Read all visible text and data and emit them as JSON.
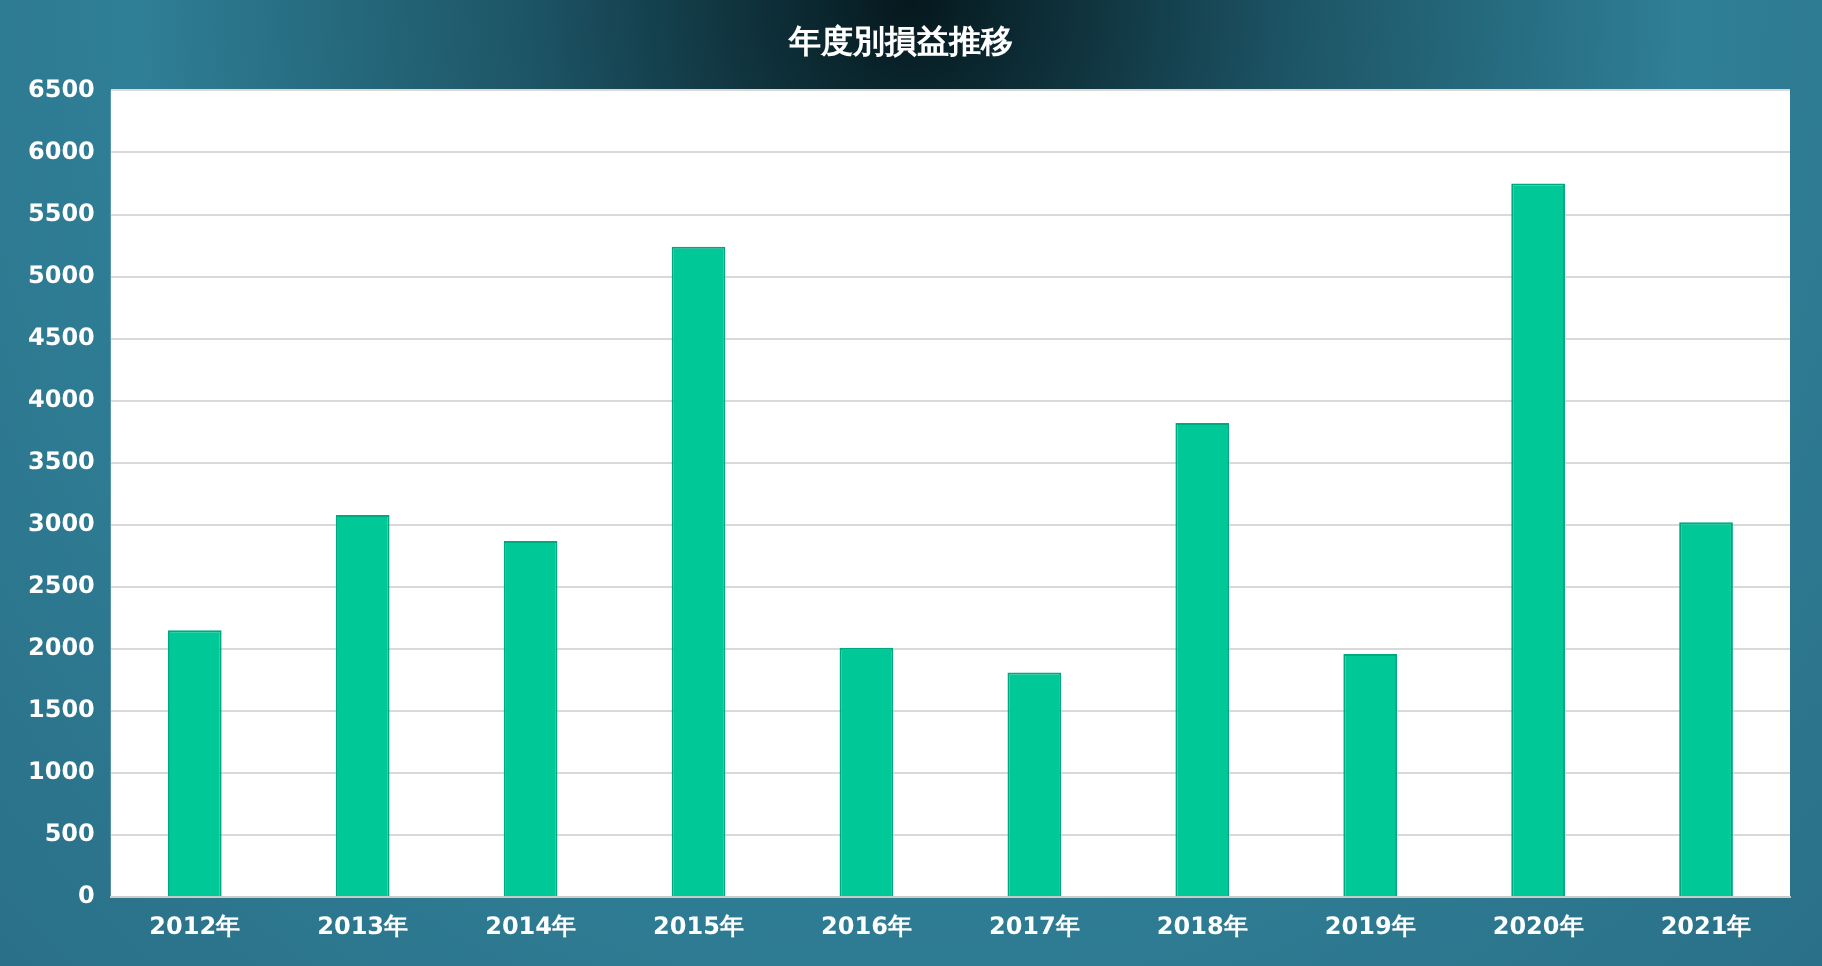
{
  "chart_data": {
    "type": "bar",
    "title": "年度別損益推移",
    "categories": [
      "2012年",
      "2013年",
      "2014年",
      "2015年",
      "2016年",
      "2017年",
      "2018年",
      "2019年",
      "2020年",
      "2021年"
    ],
    "values": [
      2150,
      3080,
      2870,
      5240,
      2010,
      1810,
      3820,
      1960,
      5750,
      3020
    ],
    "color": "#00c896",
    "ylim": [
      0,
      6500
    ],
    "yticks": [
      0,
      500,
      1000,
      1500,
      2000,
      2500,
      3000,
      3500,
      4000,
      4500,
      5000,
      5500,
      6000,
      6500
    ],
    "grid": "y",
    "legend": false
  }
}
